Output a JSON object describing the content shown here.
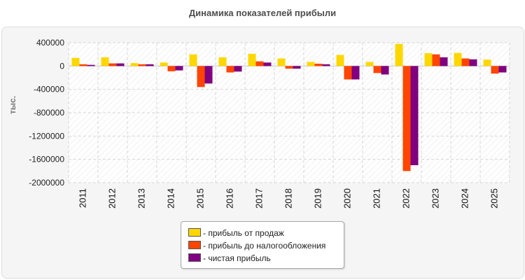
{
  "chart_data": {
    "type": "bar",
    "title": "Динамика показателей прибыли",
    "ylabel": "тыс.",
    "xlabel": "",
    "ylim": [
      -2000000,
      400000
    ],
    "yticks": [
      400000,
      0,
      -400000,
      -800000,
      -1200000,
      -1600000,
      -2000000
    ],
    "categories": [
      "2011",
      "2012",
      "2013",
      "2014",
      "2015",
      "2016",
      "2017",
      "2018",
      "2019",
      "2020",
      "2021",
      "2022",
      "2023",
      "2024",
      "2025"
    ],
    "series": [
      {
        "name": "прибыль от продаж",
        "color": "#ffd700",
        "values": [
          140000,
          150000,
          50000,
          60000,
          200000,
          150000,
          210000,
          130000,
          70000,
          190000,
          70000,
          380000,
          220000,
          225000,
          110000
        ]
      },
      {
        "name": "прибыль до налогообложения",
        "color": "#ff4500",
        "values": [
          30000,
          45000,
          30000,
          -90000,
          -360000,
          -110000,
          80000,
          -45000,
          40000,
          -230000,
          -120000,
          -1800000,
          200000,
          130000,
          -130000
        ]
      },
      {
        "name": "чистая прибыль",
        "color": "#800080",
        "values": [
          20000,
          45000,
          30000,
          -75000,
          -300000,
          -95000,
          60000,
          -45000,
          30000,
          -230000,
          -145000,
          -1700000,
          150000,
          115000,
          -110000
        ]
      }
    ],
    "grid": true,
    "legend_position": "bottom-center"
  }
}
